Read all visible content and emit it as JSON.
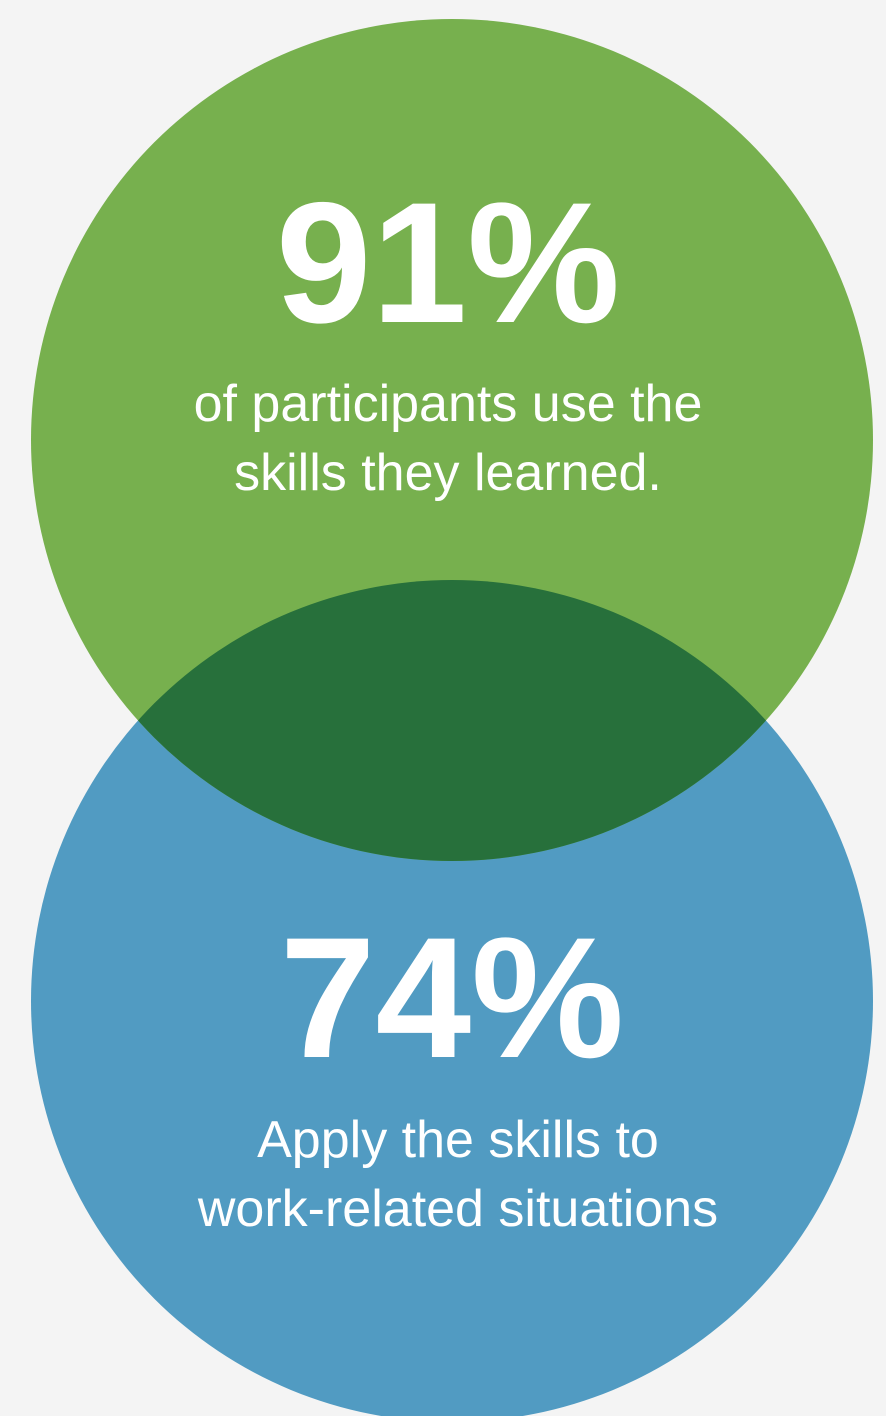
{
  "colors": {
    "background": "#f4f4f4",
    "top_circle": "#77b04e",
    "bottom_circle": "#519bc2",
    "overlap": "#27703b",
    "text": "#ffffff"
  },
  "top_stat": {
    "value": "91%",
    "caption_line1": "of participants use the",
    "caption_line2": "skills they learned."
  },
  "bottom_stat": {
    "value": "74%",
    "caption_line1": "Apply the skills to",
    "caption_line2": "work-related situations"
  }
}
